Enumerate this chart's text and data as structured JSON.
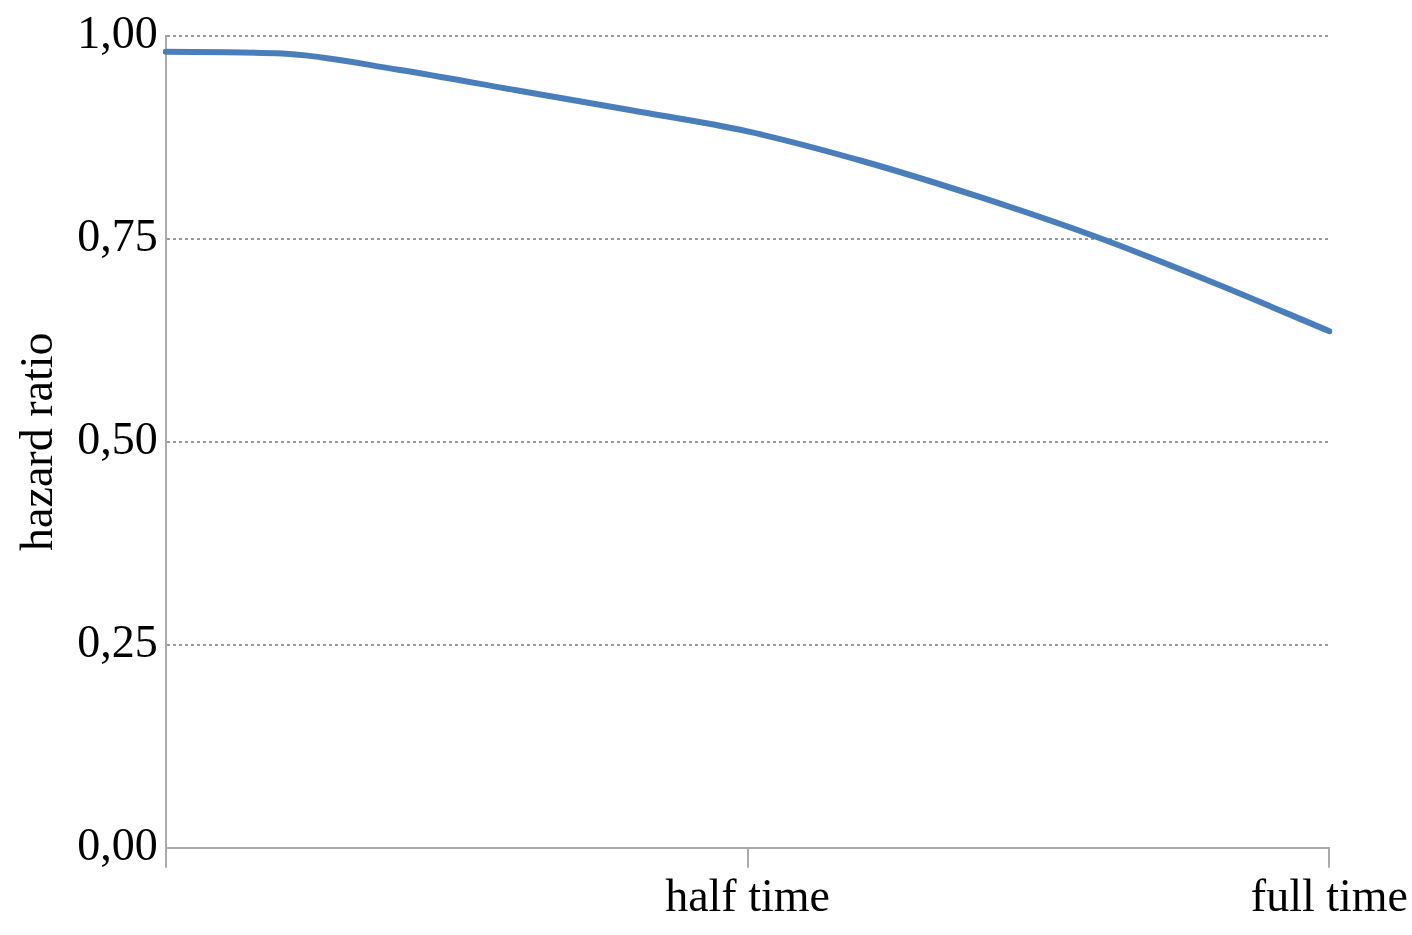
{
  "chart_data": {
    "type": "line",
    "ylabel": "hazard ratio",
    "categories": [
      null,
      null,
      null,
      null,
      null,
      "half time",
      null,
      null,
      null,
      null,
      "full time"
    ],
    "series": [
      {
        "color": "#4a7ebb",
        "values": [
          0.98,
          0.978,
          0.958,
          0.933,
          0.908,
          0.882,
          0.845,
          0.801,
          0.752,
          0.696,
          0.636
        ]
      }
    ],
    "ylim": [
      0,
      1
    ],
    "yticks": [
      {
        "value": 0,
        "label": "0,00"
      },
      {
        "value": 0.25,
        "label": "0,25"
      },
      {
        "value": 0.5,
        "label": "0,50"
      },
      {
        "value": 0.75,
        "label": "0,75"
      },
      {
        "value": 1,
        "label": "1,00"
      }
    ],
    "grid": "y",
    "legend": false,
    "marker": "none"
  }
}
